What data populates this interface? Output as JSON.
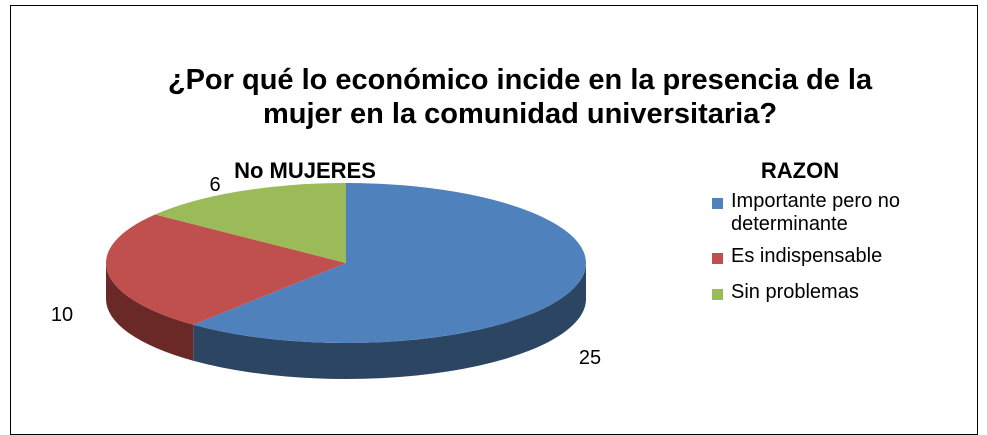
{
  "chart_data": {
    "type": "pie",
    "title": "¿Por qué lo económico incide en la presencia de la mujer en la comunidad  universitaria?",
    "series_name": "No MUJERES",
    "legend_title": "RAZON",
    "categories": [
      "Importante pero no determinante",
      "Es indispensable",
      "Sin problemas"
    ],
    "values": [
      25,
      10,
      6
    ],
    "colors": [
      "#4f81bd",
      "#c0504d",
      "#9bbb59"
    ],
    "side_colors": [
      "#2c4563",
      "#6a2827",
      "#5d7334"
    ],
    "legend": "right"
  }
}
